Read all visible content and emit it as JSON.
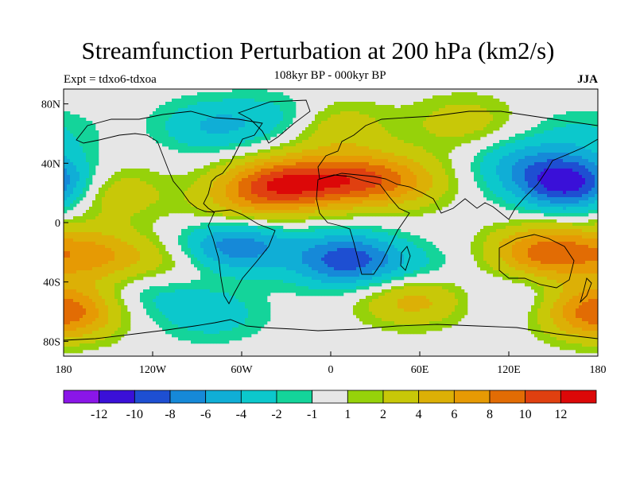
{
  "header": {
    "title": "Streamfunction Perturbation at 200 hPa (km2/s)",
    "experiment": "Expt = tdxo6-tdxoa",
    "period": "108kyr BP - 000kyr BP",
    "season": "JJA"
  },
  "axes": {
    "lat_ticks": [
      "80N",
      "40N",
      "0",
      "40S",
      "80S"
    ],
    "lon_ticks": [
      "180",
      "120W",
      "60W",
      "0",
      "60E",
      "120E",
      "180"
    ]
  },
  "colorbar": {
    "labels": [
      "-12",
      "-10",
      "-8",
      "-6",
      "-4",
      "-2",
      "-1",
      "1",
      "2",
      "4",
      "6",
      "8",
      "10",
      "12"
    ],
    "colors": [
      "#8a16e8",
      "#3a10d8",
      "#1e4fd2",
      "#1689d8",
      "#10aed6",
      "#0cc8cc",
      "#14d49a",
      "#e6e6e6",
      "#96d20a",
      "#c8c808",
      "#dcb006",
      "#e69a04",
      "#e26c04",
      "#e04010",
      "#dc0808"
    ]
  },
  "chart_data": {
    "type": "heatmap",
    "title": "Streamfunction Perturbation at 200 hPa (km2/s)",
    "subtitle": "108kyr BP - 000kyr BP",
    "season": "JJA",
    "xlim": [
      -180,
      180
    ],
    "ylim": [
      -90,
      90
    ],
    "contour_levels": [
      -12,
      -10,
      -8,
      -6,
      -4,
      -2,
      -1,
      1,
      2,
      4,
      6,
      8,
      10,
      12
    ],
    "features": [
      {
        "lon": -40,
        "lat": 25,
        "value": 9
      },
      {
        "lon": -5,
        "lat": 28,
        "value": 6
      },
      {
        "lon": 45,
        "lat": 28,
        "value": 5
      },
      {
        "lon": 20,
        "lat": 30,
        "value": 4
      },
      {
        "lon": -65,
        "lat": 8,
        "value": 3
      },
      {
        "lon": -150,
        "lat": 20,
        "value": 4
      },
      {
        "lon": 162,
        "lat": 26,
        "value": -11
      },
      {
        "lon": 130,
        "lat": 40,
        "value": -4
      },
      {
        "lon": 0,
        "lat": 65,
        "value": 4
      },
      {
        "lon": 90,
        "lat": 68,
        "value": 3
      },
      {
        "lon": -80,
        "lat": 65,
        "value": -4
      },
      {
        "lon": -30,
        "lat": 70,
        "value": -3
      },
      {
        "lon": 170,
        "lat": 60,
        "value": -2
      },
      {
        "lon": -65,
        "lat": -15,
        "value": -8
      },
      {
        "lon": 10,
        "lat": -25,
        "value": -9
      },
      {
        "lon": 55,
        "lat": -35,
        "value": -3
      },
      {
        "lon": -120,
        "lat": -45,
        "value": -3
      },
      {
        "lon": -160,
        "lat": -22,
        "value": 6
      },
      {
        "lon": -110,
        "lat": -30,
        "value": 3
      },
      {
        "lon": 145,
        "lat": -20,
        "value": 9
      },
      {
        "lon": 55,
        "lat": -50,
        "value": 6
      },
      {
        "lon": -175,
        "lat": -60,
        "value": 4
      },
      {
        "lon": 175,
        "lat": -60,
        "value": 6
      },
      {
        "lon": 130,
        "lat": -50,
        "value": -2
      },
      {
        "lon": -80,
        "lat": -62,
        "value": -3
      }
    ]
  }
}
